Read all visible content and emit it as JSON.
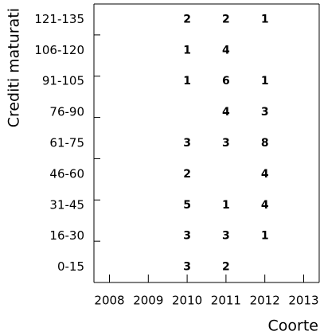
{
  "chart_data": {
    "type": "text",
    "xlabel": "Coorte",
    "ylabel": "Crediti maturati",
    "xlim": [
      2007.6,
      2013.4
    ],
    "xticks": [
      2008,
      2009,
      2010,
      2011,
      2012,
      2013
    ],
    "ylim": [
      0,
      135
    ],
    "yticks": [
      20,
      40,
      60,
      80,
      100,
      120
    ],
    "categories": [
      "0-15",
      "16-30",
      "31-45",
      "46-60",
      "61-75",
      "76-90",
      "91-105",
      "106-120",
      "121-135"
    ],
    "color": "#1414e6",
    "points": [
      {
        "x": 2010,
        "y": "121-135",
        "value": 2
      },
      {
        "x": 2011,
        "y": "121-135",
        "value": 2
      },
      {
        "x": 2012,
        "y": "121-135",
        "value": 1
      },
      {
        "x": 2010,
        "y": "106-120",
        "value": 1
      },
      {
        "x": 2011,
        "y": "106-120",
        "value": 4
      },
      {
        "x": 2010,
        "y": "91-105",
        "value": 1
      },
      {
        "x": 2011,
        "y": "91-105",
        "value": 6
      },
      {
        "x": 2012,
        "y": "91-105",
        "value": 1
      },
      {
        "x": 2011,
        "y": "76-90",
        "value": 4
      },
      {
        "x": 2012,
        "y": "76-90",
        "value": 3
      },
      {
        "x": 2010,
        "y": "61-75",
        "value": 3
      },
      {
        "x": 2011,
        "y": "61-75",
        "value": 3
      },
      {
        "x": 2012,
        "y": "61-75",
        "value": 8
      },
      {
        "x": 2010,
        "y": "46-60",
        "value": 2
      },
      {
        "x": 2012,
        "y": "46-60",
        "value": 4
      },
      {
        "x": 2010,
        "y": "31-45",
        "value": 5
      },
      {
        "x": 2011,
        "y": "31-45",
        "value": 1
      },
      {
        "x": 2012,
        "y": "31-45",
        "value": 4
      },
      {
        "x": 2010,
        "y": "16-30",
        "value": 3
      },
      {
        "x": 2011,
        "y": "16-30",
        "value": 3
      },
      {
        "x": 2012,
        "y": "16-30",
        "value": 1
      },
      {
        "x": 2010,
        "y": "0-15",
        "value": 3
      },
      {
        "x": 2011,
        "y": "0-15",
        "value": 2
      }
    ]
  }
}
